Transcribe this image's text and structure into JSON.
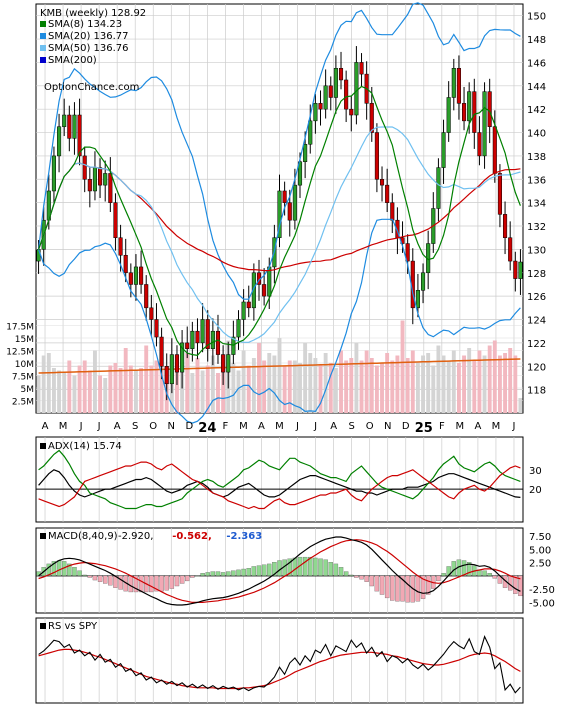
{
  "chart_data": [
    {
      "panel": "price",
      "type": "candlestick",
      "title": "KMB (weekly) 128.92",
      "watermark": "OptionChance.com",
      "legend": [
        {
          "text": "SMA(8) 134.23",
          "color": "#008000"
        },
        {
          "text": "SMA(20) 136.77",
          "color": "#1e8be0"
        },
        {
          "text": "SMA(50) 136.76",
          "color": "#70c0f0"
        },
        {
          "text": "SMA(200)",
          "color": "#0000cc"
        }
      ],
      "legend_placement": "top-left",
      "ylim": [
        116,
        151
      ],
      "yticks": [
        118,
        120,
        122,
        124,
        126,
        128,
        130,
        132,
        134,
        136,
        138,
        140,
        142,
        144,
        146,
        148,
        150
      ],
      "grid": true,
      "x_months": [
        "A",
        "M",
        "J",
        "J",
        "A",
        "S",
        "O",
        "N",
        "D",
        "24",
        "F",
        "M",
        "A",
        "M",
        "J",
        "J",
        "A",
        "S",
        "O",
        "N",
        "D",
        "25",
        "F",
        "M",
        "A",
        "M",
        "J"
      ],
      "closes": [
        130.0,
        132.5,
        135.0,
        138.0,
        140.5,
        141.5,
        139.5,
        141.5,
        138.0,
        136.0,
        135.0,
        137.0,
        135.5,
        136.5,
        134.0,
        131.0,
        129.5,
        128.0,
        127.0,
        128.5,
        127.0,
        125.0,
        124.0,
        122.5,
        120.0,
        118.5,
        121.0,
        119.5,
        122.0,
        121.5,
        123.0,
        122.0,
        124.0,
        121.5,
        123.0,
        121.0,
        119.5,
        121.0,
        122.5,
        124.0,
        125.5,
        125.0,
        128.0,
        127.0,
        126.0,
        128.5,
        131.0,
        135.0,
        134.0,
        132.5,
        135.5,
        137.5,
        139.0,
        141.0,
        142.5,
        142.0,
        144.0,
        143.0,
        145.5,
        144.5,
        142.0,
        141.5,
        146.0,
        145.0,
        142.5,
        140.0,
        136.0,
        135.5,
        134.0,
        132.5,
        131.0,
        130.5,
        129.0,
        125.0,
        126.5,
        128.0,
        130.5,
        133.5,
        137.0,
        140.0,
        143.0,
        145.5,
        142.5,
        141.0,
        143.5,
        140.0,
        138.0,
        143.5,
        140.5,
        136.5,
        133.0,
        131.0,
        129.0,
        127.5,
        128.92
      ],
      "volume": {
        "yticks_labels": [
          "17.5M",
          "15M",
          "12.5M",
          "10M",
          "7.5M",
          "5M",
          "2.5M"
        ],
        "yticks": [
          17.5,
          15,
          12.5,
          10,
          7.5,
          5,
          2.5
        ],
        "ylim": [
          0,
          19
        ],
        "values": [
          7.5,
          11.5,
          12.0,
          9.0,
          8.5,
          8.0,
          10.5,
          7.5,
          9.5,
          10.5,
          8.5,
          12.5,
          7.5,
          7.0,
          9.5,
          10.0,
          9.0,
          13.0,
          9.5,
          8.5,
          9.0,
          13.5,
          9.5,
          10.5,
          11.0,
          9.0,
          8.5,
          10.0,
          9.5,
          12.0,
          8.0,
          11.0,
          8.5,
          9.5,
          11.5,
          8.0,
          9.0,
          14.5,
          10.0,
          8.5,
          12.5,
          9.5,
          11.0,
          14.0,
          10.5,
          12.0,
          11.5,
          15.0,
          9.5,
          10.5,
          10.5,
          10.0,
          14.0,
          12.0,
          11.0,
          9.5,
          12.0,
          10.0,
          9.0,
          12.5,
          10.5,
          11.0,
          14.0,
          10.5,
          12.5,
          11.0,
          9.5,
          10.0,
          12.0,
          10.5,
          11.5,
          18.5,
          11.0,
          12.5,
          10.0,
          11.5,
          12.0,
          9.5,
          13.5,
          11.5,
          10.5,
          12.5,
          10.0,
          11.5,
          13.0,
          10.5,
          12.5,
          11.5,
          13.5,
          14.5,
          11.5,
          12.0,
          13.0,
          11.5,
          3.0
        ],
        "ma_start": 8.0,
        "ma_end": 10.8
      }
    },
    {
      "panel": "adx",
      "type": "line",
      "title": "ADX(14) 15.74",
      "ylim": [
        3,
        47
      ],
      "yticks": [
        30,
        20
      ],
      "series": [
        {
          "name": "ADX(14)",
          "color": "#000000",
          "values": [
            22,
            25,
            28,
            30,
            29,
            26,
            22,
            19,
            17,
            16,
            17,
            18,
            19,
            20,
            20,
            21,
            22,
            23,
            24,
            25,
            25,
            26,
            25,
            23,
            21,
            19,
            18,
            19,
            20,
            22,
            23,
            24,
            23,
            21,
            18,
            17,
            16,
            17,
            19,
            21,
            22,
            23,
            21,
            19,
            17,
            16,
            16,
            17,
            19,
            21,
            23,
            25,
            26,
            27,
            27,
            26,
            25,
            24,
            23,
            22,
            21,
            20,
            19,
            19,
            18,
            18,
            17,
            18,
            19,
            20,
            20,
            20,
            21,
            21,
            21,
            22,
            23,
            24,
            26,
            27,
            28,
            28,
            27,
            26,
            25,
            24,
            23,
            22,
            21,
            20,
            19,
            18,
            17,
            16,
            15.74
          ]
        },
        {
          "name": "+DI",
          "color": "#008000",
          "values": [
            30,
            32,
            35,
            38,
            40,
            37,
            33,
            28,
            24,
            22,
            18,
            17,
            16,
            15,
            13,
            12,
            11,
            10,
            10,
            10,
            11,
            12,
            12,
            11,
            11,
            12,
            13,
            14,
            15,
            18,
            20,
            22,
            24,
            25,
            24,
            22,
            21,
            23,
            25,
            27,
            30,
            31,
            33,
            35,
            34,
            32,
            31,
            30,
            33,
            36,
            36,
            34,
            33,
            32,
            30,
            28,
            27,
            26,
            26,
            25,
            24,
            28,
            30,
            32,
            29,
            26,
            23,
            21,
            20,
            19,
            18,
            17,
            16,
            15,
            17,
            20,
            23,
            26,
            30,
            33,
            35,
            37,
            33,
            31,
            30,
            29,
            31,
            33,
            34,
            32,
            29,
            27,
            26,
            25,
            24
          ]
        },
        {
          "name": "-DI",
          "color": "#cc0000",
          "values": [
            15,
            14,
            13,
            12,
            11,
            12,
            14,
            16,
            20,
            24,
            25,
            26,
            27,
            28,
            29,
            30,
            31,
            32,
            32,
            33,
            34,
            34,
            33,
            31,
            30,
            32,
            33,
            31,
            29,
            27,
            25,
            24,
            22,
            20,
            18,
            17,
            16,
            14,
            13,
            12,
            11,
            10,
            11,
            10,
            10,
            12,
            14,
            15,
            13,
            12,
            12,
            13,
            14,
            15,
            16,
            17,
            17,
            18,
            18,
            19,
            20,
            17,
            15,
            14,
            17,
            20,
            22,
            24,
            26,
            27,
            27,
            28,
            29,
            30,
            28,
            26,
            24,
            22,
            20,
            18,
            16,
            15,
            18,
            20,
            21,
            22,
            20,
            19,
            21,
            24,
            27,
            29,
            31,
            32,
            31
          ]
        }
      ]
    },
    {
      "panel": "macd",
      "type": "line",
      "title": "MACD(8,40,9)",
      "title_values": [
        {
          "text": "-2.920,",
          "color": "#000000"
        },
        {
          "text": "-0.562,",
          "color": "#cc0000"
        },
        {
          "text": "-2.363",
          "color": "#1e5bd0"
        }
      ],
      "ylim": [
        -7,
        9
      ],
      "yticks": [
        7.5,
        5.0,
        2.5,
        0,
        -2.5,
        -5.0
      ],
      "ytick_labels": [
        "7.50",
        "5.00",
        "2.50",
        "",
        "-2.50",
        "-5.00"
      ],
      "series": [
        {
          "name": "MACD",
          "color": "#000000",
          "values": [
            0.0,
            0.8,
            1.6,
            2.3,
            2.9,
            3.2,
            3.3,
            3.2,
            3.0,
            2.6,
            2.2,
            1.8,
            1.4,
            1.0,
            0.5,
            -0.1,
            -0.7,
            -1.3,
            -1.9,
            -2.4,
            -2.9,
            -3.4,
            -3.9,
            -4.3,
            -4.8,
            -5.2,
            -5.4,
            -5.5,
            -5.5,
            -5.4,
            -5.2,
            -5.0,
            -4.7,
            -4.5,
            -4.3,
            -4.2,
            -4.1,
            -3.9,
            -3.6,
            -3.3,
            -2.9,
            -2.5,
            -2.0,
            -1.5,
            -1.0,
            -0.4,
            0.3,
            1.1,
            1.8,
            2.5,
            3.3,
            4.1,
            4.8,
            5.5,
            6.0,
            6.5,
            6.9,
            7.1,
            7.3,
            7.3,
            7.1,
            6.8,
            6.6,
            6.3,
            5.8,
            5.0,
            4.0,
            3.0,
            2.0,
            1.0,
            0.1,
            -0.7,
            -1.6,
            -2.4,
            -3.0,
            -3.3,
            -3.2,
            -2.8,
            -2.0,
            -1.0,
            0.1,
            1.1,
            1.7,
            2.0,
            2.2,
            2.1,
            1.8,
            1.9,
            1.6,
            0.9,
            0.0,
            -0.9,
            -1.7,
            -2.4,
            -2.92
          ]
        },
        {
          "name": "Signal",
          "color": "#cc0000",
          "values": [
            -0.5,
            -0.2,
            0.2,
            0.6,
            1.1,
            1.5,
            1.9,
            2.2,
            2.4,
            2.5,
            2.4,
            2.3,
            2.1,
            1.9,
            1.6,
            1.3,
            0.9,
            0.5,
            0.0,
            -0.5,
            -1.0,
            -1.5,
            -2.0,
            -2.5,
            -3.0,
            -3.5,
            -3.9,
            -4.3,
            -4.6,
            -4.8,
            -5.0,
            -5.0,
            -5.0,
            -4.9,
            -4.8,
            -4.7,
            -4.5,
            -4.4,
            -4.2,
            -4.0,
            -3.7,
            -3.4,
            -3.1,
            -2.7,
            -2.3,
            -1.8,
            -1.3,
            -0.7,
            -0.1,
            0.5,
            1.2,
            1.9,
            2.6,
            3.3,
            3.9,
            4.5,
            5.0,
            5.5,
            5.9,
            6.3,
            6.6,
            6.7,
            6.8,
            6.7,
            6.5,
            6.2,
            5.8,
            5.2,
            4.6,
            3.9,
            3.1,
            2.3,
            1.5,
            0.7,
            0.0,
            -0.6,
            -1.0,
            -1.3,
            -1.4,
            -1.3,
            -1.0,
            -0.6,
            -0.2,
            0.2,
            0.6,
            0.9,
            1.1,
            1.3,
            1.3,
            1.2,
            0.9,
            0.5,
            0.0,
            -0.3,
            -0.56
          ]
        }
      ]
    },
    {
      "panel": "rs",
      "type": "line",
      "title": "RS vs SPY",
      "ylim": [
        0,
        100
      ],
      "series": [
        {
          "name": "RS",
          "color": "#000000",
          "values": [
            60,
            65,
            72,
            80,
            78,
            70,
            74,
            62,
            66,
            58,
            63,
            52,
            60,
            49,
            53,
            42,
            47,
            36,
            40,
            30,
            34,
            24,
            28,
            20,
            24,
            18,
            22,
            16,
            20,
            14,
            18,
            13,
            17,
            12,
            16,
            11,
            15,
            12,
            14,
            10,
            13,
            9,
            13,
            15,
            14,
            20,
            28,
            42,
            32,
            48,
            55,
            45,
            58,
            50,
            66,
            62,
            74,
            58,
            72,
            68,
            64,
            80,
            70,
            76,
            62,
            70,
            57,
            64,
            50,
            58,
            55,
            48,
            54,
            45,
            40,
            46,
            38,
            44,
            52,
            60,
            70,
            78,
            72,
            68,
            82,
            64,
            60,
            85,
            70,
            40,
            48,
            10,
            18,
            6,
            14
          ]
        },
        {
          "name": "RS avg",
          "color": "#cc0000",
          "values": [
            58,
            60,
            62,
            64,
            66,
            67,
            67,
            66,
            65,
            63,
            61,
            58,
            56,
            53,
            50,
            47,
            44,
            41,
            38,
            35,
            32,
            29,
            27,
            25,
            23,
            21,
            19,
            18,
            16,
            15,
            14,
            13,
            13,
            13,
            13,
            12,
            12,
            12,
            12,
            12,
            13,
            13,
            14,
            15,
            16,
            18,
            21,
            24,
            27,
            31,
            35,
            38,
            41,
            44,
            47,
            50,
            52,
            55,
            57,
            59,
            60,
            61,
            62,
            63,
            63,
            63,
            62,
            61,
            60,
            58,
            57,
            55,
            53,
            51,
            49,
            47,
            46,
            45,
            45,
            46,
            48,
            50,
            52,
            55,
            58,
            60,
            61,
            62,
            61,
            58,
            54,
            50,
            45,
            40,
            36
          ]
        }
      ]
    }
  ]
}
